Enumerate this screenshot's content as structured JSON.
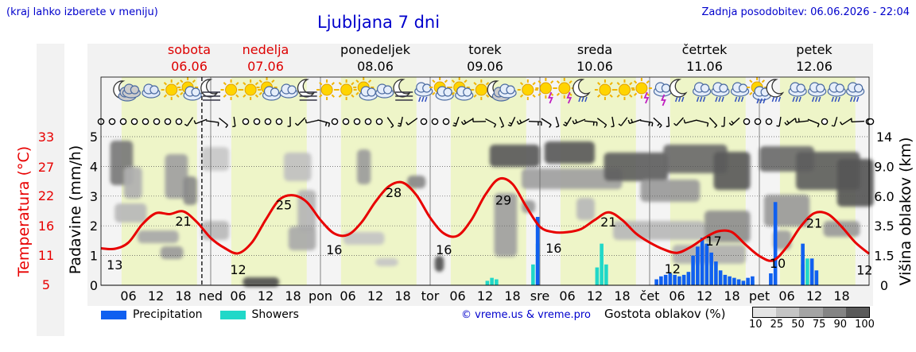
{
  "header": {
    "note": "(kraj lahko izberete v meniju)",
    "title": "Ljubljana 7 dni",
    "updated": "Zadnja posodobitev: 06.06.2026 - 22:04"
  },
  "days": [
    {
      "name": "sobota",
      "date": "06.06",
      "weekend": true
    },
    {
      "name": "nedelja",
      "date": "07.06",
      "weekend": true
    },
    {
      "name": "ponedeljek",
      "date": "08.06",
      "weekend": false
    },
    {
      "name": "torek",
      "date": "09.06",
      "weekend": false
    },
    {
      "name": "sreda",
      "date": "10.06",
      "weekend": false
    },
    {
      "name": "četrtek",
      "date": "11.06",
      "weekend": false
    },
    {
      "name": "petek",
      "date": "12.06",
      "weekend": false
    }
  ],
  "axes": {
    "temperature_label": "Temperatura (°C)",
    "precip_label": "Padavine (mm/h)",
    "cloud_label": "Višina oblakov (km)",
    "temperature_ticks": [
      "33",
      "27",
      "22",
      "16",
      "11",
      "5"
    ],
    "precip_ticks": [
      "5",
      "4",
      "3",
      "2",
      "1",
      "0"
    ],
    "cloud_ticks": [
      "14",
      "9.0",
      "6.0",
      "3.5",
      "1.5",
      "0"
    ]
  },
  "x_labels": [
    "06",
    "12",
    "18",
    "ned",
    "06",
    "12",
    "18",
    "pon",
    "06",
    "12",
    "18",
    "tor",
    "06",
    "12",
    "18",
    "sre",
    "06",
    "12",
    "18",
    "čet",
    "06",
    "12",
    "18",
    "pet",
    "06",
    "12",
    "18"
  ],
  "legend": {
    "precipitation": "Precipitation",
    "showers": "Showers",
    "density_title": "Gostota oblakov (%)",
    "density_levels": [
      "10",
      "25",
      "50",
      "75",
      "90",
      "100"
    ]
  },
  "copyright": "© vreme.us & vreme.pro",
  "colors": {
    "temperature": "#e80000",
    "precipitation": "#1060f0",
    "showers": "#20d8c8",
    "daylight": "#eef5c8",
    "night": "#f4f4f4",
    "weekend_text": "#dd0000",
    "link_text": "#0000cc"
  },
  "chart_data": {
    "type": "line",
    "x_unit": "hours since 06.06 00:00",
    "xlim": [
      0,
      168
    ],
    "series": [
      {
        "name": "Temperatura (°C)",
        "x": [
          0,
          3,
          6,
          9,
          12,
          15,
          18,
          21,
          24,
          27,
          30,
          33,
          36,
          39,
          42,
          45,
          48,
          51,
          54,
          57,
          60,
          63,
          66,
          69,
          72,
          75,
          78,
          81,
          84,
          87,
          90,
          93,
          96,
          99,
          102,
          105,
          108,
          111,
          114,
          117,
          120,
          123,
          126,
          129,
          132,
          135,
          138,
          141,
          144,
          147,
          150,
          153,
          156,
          159,
          162,
          165,
          168
        ],
        "values": [
          13.2,
          13.1,
          14.5,
          18.5,
          21,
          20.8,
          21.4,
          19,
          15.5,
          13.3,
          12.1,
          14.5,
          19.5,
          24,
          25,
          23.5,
          19.5,
          16.5,
          16.2,
          19,
          23.5,
          27,
          27.8,
          25,
          20,
          16.5,
          16,
          19.5,
          25,
          28.6,
          27.5,
          22.5,
          18,
          16.8,
          16.8,
          17.5,
          19.5,
          21.2,
          19.5,
          16.5,
          14.5,
          13,
          12.2,
          13.5,
          15.5,
          17,
          16.8,
          14,
          11.5,
          10.5,
          13.5,
          18,
          21,
          20.8,
          18,
          14.5,
          12
        ]
      }
    ],
    "temperature_labels": [
      {
        "hour": 3,
        "value": "13"
      },
      {
        "hour": 18,
        "value": "21"
      },
      {
        "hour": 30,
        "value": "12"
      },
      {
        "hour": 40,
        "value": "25"
      },
      {
        "hour": 51,
        "value": "16"
      },
      {
        "hour": 64,
        "value": "28"
      },
      {
        "hour": 75,
        "value": "16"
      },
      {
        "hour": 88,
        "value": "29"
      },
      {
        "hour": 99,
        "value": "16"
      },
      {
        "hour": 111,
        "value": "21"
      },
      {
        "hour": 125,
        "value": "12"
      },
      {
        "hour": 134,
        "value": "17"
      },
      {
        "hour": 148,
        "value": "10"
      },
      {
        "hour": 156,
        "value": "21"
      },
      {
        "hour": 167,
        "value": "12"
      }
    ],
    "precipitation": [
      {
        "hour": 121.5,
        "mm": 0.2
      },
      {
        "hour": 122.5,
        "mm": 0.3
      },
      {
        "hour": 123.5,
        "mm": 0.35
      },
      {
        "hour": 124.5,
        "mm": 0.4
      },
      {
        "hour": 125.5,
        "mm": 0.35
      },
      {
        "hour": 126.5,
        "mm": 0.3
      },
      {
        "hour": 127.5,
        "mm": 0.35
      },
      {
        "hour": 128.5,
        "mm": 0.45
      },
      {
        "hour": 129.5,
        "mm": 1.0
      },
      {
        "hour": 130.5,
        "mm": 1.3
      },
      {
        "hour": 131.5,
        "mm": 1.6
      },
      {
        "hour": 132.5,
        "mm": 1.4
      },
      {
        "hour": 133.5,
        "mm": 1.1
      },
      {
        "hour": 134.5,
        "mm": 0.8
      },
      {
        "hour": 135.5,
        "mm": 0.5
      },
      {
        "hour": 136.5,
        "mm": 0.35
      },
      {
        "hour": 137.5,
        "mm": 0.3
      },
      {
        "hour": 138.5,
        "mm": 0.25
      },
      {
        "hour": 139.5,
        "mm": 0.2
      },
      {
        "hour": 140.5,
        "mm": 0.15
      },
      {
        "hour": 141.5,
        "mm": 0.25
      },
      {
        "hour": 142.5,
        "mm": 0.3
      },
      {
        "hour": 146.5,
        "mm": 0.4
      },
      {
        "hour": 147.5,
        "mm": 2.8
      },
      {
        "hour": 153.5,
        "mm": 1.4
      },
      {
        "hour": 155.5,
        "mm": 0.9
      },
      {
        "hour": 156.5,
        "mm": 0.5
      },
      {
        "hour": 95.5,
        "mm": 2.3
      }
    ],
    "showers": [
      {
        "hour": 84.5,
        "mm": 0.15
      },
      {
        "hour": 85.5,
        "mm": 0.25
      },
      {
        "hour": 86.5,
        "mm": 0.2
      },
      {
        "hour": 94.5,
        "mm": 0.7
      },
      {
        "hour": 95.5,
        "mm": 1.4
      },
      {
        "hour": 108.5,
        "mm": 0.6
      },
      {
        "hour": 109.5,
        "mm": 1.4
      },
      {
        "hour": 110.5,
        "mm": 0.7
      },
      {
        "hour": 141.5,
        "mm": 0.1
      },
      {
        "hour": 142.5,
        "mm": 0.15
      },
      {
        "hour": 153.5,
        "mm": 0.7
      },
      {
        "hour": 154.5,
        "mm": 0.9
      }
    ],
    "ylim_precip": [
      0,
      5
    ],
    "ylim_temperature": [
      5,
      38
    ]
  }
}
